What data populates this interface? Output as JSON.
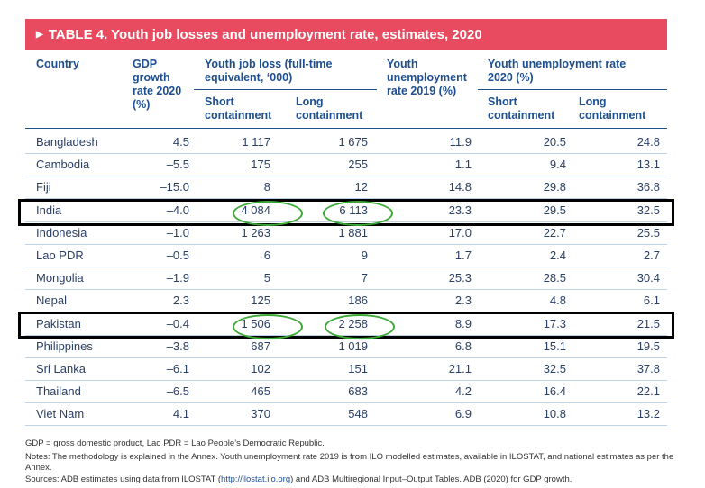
{
  "title": "TABLE 4. Youth job losses and unemployment rate, estimates, 2020",
  "headers": {
    "country": "Country",
    "gdp": "GDP growth rate 2020 (%)",
    "job_loss": "Youth job loss (full-time equivalent, ‘000)",
    "unemp2019": "Youth unemployment rate 2019 (%)",
    "unemp2020": "Youth unemployment rate 2020 (%)",
    "short": "Short containment",
    "long": "Long containment"
  },
  "rows": [
    [
      "Bangladesh",
      "4.5",
      "1 117",
      "1 675",
      "11.9",
      "20.5",
      "24.8"
    ],
    [
      "Cambodia",
      "–5.5",
      "175",
      "255",
      "1.1",
      "9.4",
      "13.1"
    ],
    [
      "Fiji",
      "–15.0",
      "8",
      "12",
      "14.8",
      "29.8",
      "36.8"
    ],
    [
      "India",
      "–4.0",
      "4 084",
      "6 113",
      "23.3",
      "29.5",
      "32.5"
    ],
    [
      "Indonesia",
      "–1.0",
      "1 263",
      "1 881",
      "17.0",
      "22.7",
      "25.5"
    ],
    [
      "Lao PDR",
      "–0.5",
      "6",
      "9",
      "1.7",
      "2.4",
      "2.7"
    ],
    [
      "Mongolia",
      "–1.9",
      "5",
      "7",
      "25.3",
      "28.5",
      "30.4"
    ],
    [
      "Nepal",
      "2.3",
      "125",
      "186",
      "2.3",
      "4.8",
      "6.1"
    ],
    [
      "Pakistan",
      "–0.4",
      "1 506",
      "2 258",
      "8.9",
      "17.3",
      "21.5"
    ],
    [
      "Philippines",
      "–3.8",
      "687",
      "1 019",
      "6.8",
      "15.1",
      "19.5"
    ],
    [
      "Sri Lanka",
      "–6.1",
      "102",
      "151",
      "21.1",
      "32.5",
      "37.8"
    ],
    [
      "Thailand",
      "–6.5",
      "465",
      "683",
      "4.2",
      "16.4",
      "22.1"
    ],
    [
      "Viet Nam",
      "4.1",
      "370",
      "548",
      "6.9",
      "10.8",
      "13.2"
    ]
  ],
  "notes": {
    "abbrev": "GDP = gross domestic product, Lao PDR = Lao People’s Democratic Republic.",
    "notes": "Notes: The methodology is explained in the Annex. Youth unemployment rate 2019 is from ILO modelled estimates, available in ILOSTAT, and national estimates as per the Annex.",
    "sources_pre": "Sources: ADB estimates using data from ILOSTAT (",
    "sources_link": "http://ilostat.ilo.org",
    "sources_post": ") and ADB Multiregional Input–Output Tables. ADB (2020) for GDP growth."
  },
  "colors": {
    "banner": "#e84a5f",
    "header": "#1d4f91",
    "highlight_box": "#000000",
    "circle": "#3aaa35"
  }
}
